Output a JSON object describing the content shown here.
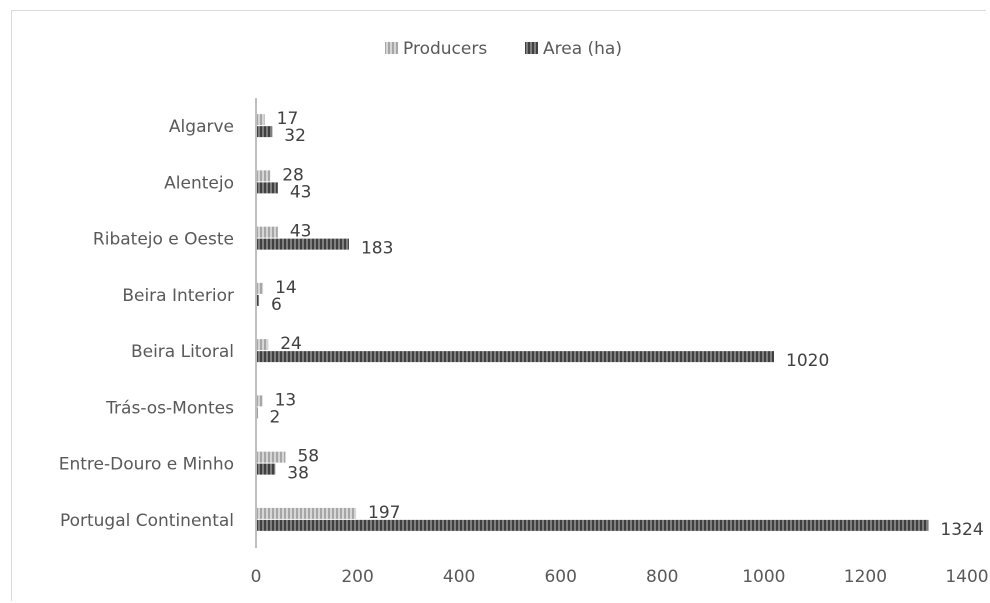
{
  "chart_data": {
    "type": "bar",
    "orientation": "horizontal",
    "categories": [
      "Algarve",
      "Alentejo",
      "Ribatejo e Oeste",
      "Beira Interior",
      "Beira Litoral",
      "Trás-os-Montes",
      "Entre-Douro e Minho",
      "Portugal Continental"
    ],
    "series": [
      {
        "name": "Producers",
        "values": [
          17,
          28,
          43,
          14,
          24,
          13,
          58,
          197
        ],
        "color": "#bfbfbf"
      },
      {
        "name": "Area (ha)",
        "values": [
          32,
          43,
          183,
          6,
          1020,
          2,
          38,
          1324
        ],
        "color": "#595959"
      }
    ],
    "xlim": [
      0,
      1400
    ],
    "xticks": [
      "0",
      "200",
      "400",
      "600",
      "800",
      "1000",
      "1200",
      "1400"
    ],
    "legend_position": "top",
    "grid": false,
    "title": "",
    "xlabel": "",
    "ylabel": ""
  }
}
